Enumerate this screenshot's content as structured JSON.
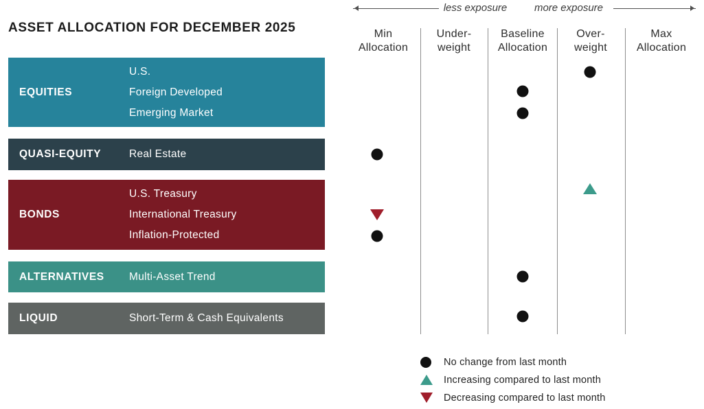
{
  "title": "ASSET ALLOCATION FOR DECEMBER 2025",
  "axis_legend": {
    "less": "less exposure",
    "more": "more exposure"
  },
  "column_headers": [
    {
      "line1": "Min",
      "line2": "Allocation"
    },
    {
      "line1": "Under-",
      "line2": "weight"
    },
    {
      "line1": "Baseline",
      "line2": "Allocation"
    },
    {
      "line1": "Over-",
      "line2": "weight"
    },
    {
      "line1": "Max",
      "line2": "Allocation"
    }
  ],
  "categories": [
    {
      "name": "EQUITIES",
      "color": "#26839B",
      "assets": [
        "U.S.",
        "Foreign Developed",
        "Emerging Market"
      ]
    },
    {
      "name": "QUASI-EQUITY",
      "color": "#2C414B",
      "assets": [
        "Real Estate"
      ]
    },
    {
      "name": "BONDS",
      "color": "#7A1A24",
      "assets": [
        "U.S. Treasury",
        "International Treasury",
        "Inflation-Protected"
      ]
    },
    {
      "name": "ALTERNATIVES",
      "color": "#3B9187",
      "assets": [
        "Multi-Asset Trend"
      ]
    },
    {
      "name": "LIQUID",
      "color": "#5F6462",
      "assets": [
        "Short-Term & Cash Equivalents"
      ]
    }
  ],
  "legend": [
    {
      "symbol": "dot",
      "color": "#111111",
      "label": "No change from last month"
    },
    {
      "symbol": "triangle-up",
      "color": "#3C9B8B",
      "label": "Increasing compared to last month"
    },
    {
      "symbol": "triangle-down",
      "color": "#A01E2B",
      "label": "Decreasing compared to last month"
    }
  ],
  "chart_data": {
    "type": "scatter",
    "title": "ASSET ALLOCATION FOR DECEMBER 2025",
    "columns": [
      "Min Allocation",
      "Under-weight",
      "Baseline Allocation",
      "Over-weight",
      "Max Allocation"
    ],
    "rows": [
      "U.S.",
      "Foreign Developed",
      "Emerging Market",
      "Real Estate",
      "U.S. Treasury",
      "International Treasury",
      "Inflation-Protected",
      "Multi-Asset Trend",
      "Short-Term & Cash Equivalents"
    ],
    "legend_position": "bottom",
    "points": [
      {
        "row": "U.S.",
        "category": "EQUITIES",
        "column": "Over-weight",
        "change": "no change"
      },
      {
        "row": "Foreign Developed",
        "category": "EQUITIES",
        "column": "Baseline Allocation",
        "change": "no change"
      },
      {
        "row": "Emerging Market",
        "category": "EQUITIES",
        "column": "Baseline Allocation",
        "change": "no change"
      },
      {
        "row": "Real Estate",
        "category": "QUASI-EQUITY",
        "column": "Min Allocation",
        "change": "no change"
      },
      {
        "row": "U.S. Treasury",
        "category": "BONDS",
        "column": "Over-weight",
        "change": "increasing"
      },
      {
        "row": "International Treasury",
        "category": "BONDS",
        "column": "Min Allocation",
        "change": "decreasing"
      },
      {
        "row": "Inflation-Protected",
        "category": "BONDS",
        "column": "Min Allocation",
        "change": "no change"
      },
      {
        "row": "Multi-Asset Trend",
        "category": "ALTERNATIVES",
        "column": "Baseline Allocation",
        "change": "no change"
      },
      {
        "row": "Short-Term & Cash Equivalents",
        "category": "LIQUID",
        "column": "Baseline Allocation",
        "change": "no change"
      }
    ]
  }
}
